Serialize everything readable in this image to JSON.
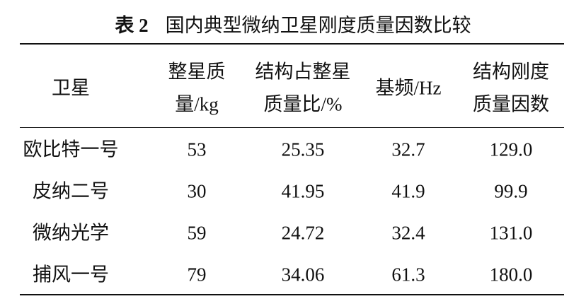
{
  "caption": {
    "label": "表 2",
    "title": "国内典型微纳卫星刚度质量因数比较"
  },
  "table": {
    "header": [
      [
        "卫星"
      ],
      [
        "整星质",
        "量/kg"
      ],
      [
        "结构占整星",
        "质量比/%"
      ],
      [
        "基频/Hz"
      ],
      [
        "结构刚度",
        "质量因数"
      ]
    ],
    "rows": [
      [
        "欧比特一号",
        "53",
        "25.35",
        "32.7",
        "129.0"
      ],
      [
        "皮纳二号",
        "30",
        "41.95",
        "41.9",
        "99.9"
      ],
      [
        "微纳光学",
        "59",
        "24.72",
        "32.4",
        "131.0"
      ],
      [
        "捕风一号",
        "79",
        "34.06",
        "61.3",
        "180.0"
      ]
    ]
  }
}
